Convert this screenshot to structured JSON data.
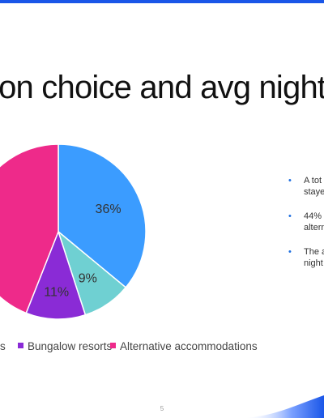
{
  "slide": {
    "title": "ion choice and avg nights",
    "page_number": "5"
  },
  "bullets": [
    {
      "line1": "A tot",
      "line2": "staye"
    },
    {
      "line1": "44%",
      "line2": "altern"
    },
    {
      "line1": "The a",
      "line2": "night"
    }
  ],
  "colors": {
    "accent": "#1a56e8",
    "hotels": "#3b9cff",
    "apartments": "#6fd0d2",
    "bungalow": "#8a2bd6",
    "alternative": "#ee2a8a"
  },
  "chart_data": {
    "type": "pie",
    "start_angle_deg": 0,
    "direction": "clockwise",
    "slices": [
      {
        "label": "",
        "value": 36,
        "value_label": "36%",
        "color": "#3b9cff"
      },
      {
        "label": "",
        "value": 9,
        "value_label": "9%",
        "color": "#6fd0d2"
      },
      {
        "label": "Bungalow resorts",
        "value": 11,
        "value_label": "11%",
        "color": "#8a2bd6"
      },
      {
        "label": "Alternative accommodations",
        "value": 44,
        "value_label": "%",
        "color": "#ee2a8a"
      }
    ],
    "legend": {
      "placement": "bottom",
      "entries": [
        {
          "label": "s",
          "color": "#3b9cff"
        },
        {
          "label": "Bungalow resorts",
          "color": "#8a2bd6"
        },
        {
          "label": "Alternative accommodations",
          "color": "#ee2a8a"
        }
      ]
    }
  }
}
